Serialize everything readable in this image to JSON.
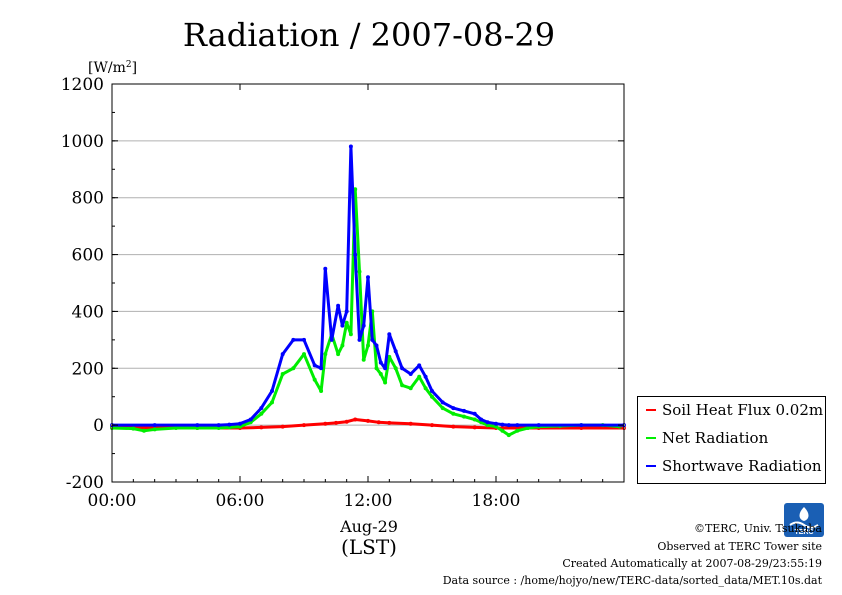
{
  "chart_data": {
    "type": "line",
    "title": "Radiation / 2007-08-29",
    "ylabel_unit": "[W/m",
    "ylabel_sup": "2",
    "ylabel_close": "]",
    "xlabel_date": "Aug-29",
    "xlabel_tz": "(LST)",
    "ylim": [
      -200,
      1200
    ],
    "yticks": [
      -200,
      0,
      200,
      400,
      600,
      800,
      1000,
      1200
    ],
    "xlim": [
      0,
      24
    ],
    "xticks": [
      {
        "hour": 0,
        "label": "00:00"
      },
      {
        "hour": 6,
        "label": "06:00"
      },
      {
        "hour": 12,
        "label": "12:00"
      },
      {
        "hour": 18,
        "label": "18:00"
      }
    ],
    "grid": true,
    "legend_position": "right",
    "series": [
      {
        "name": "Soil Heat Flux 0.02m",
        "color": "#ff0000",
        "x": [
          0,
          2,
          4,
          6,
          7,
          8,
          9,
          10,
          10.5,
          11,
          11.4,
          12,
          12.5,
          13,
          14,
          15,
          16,
          17,
          18,
          19,
          20,
          22,
          24
        ],
        "y": [
          -8,
          -10,
          -10,
          -10,
          -8,
          -5,
          0,
          5,
          8,
          12,
          20,
          15,
          10,
          8,
          5,
          0,
          -5,
          -8,
          -10,
          -10,
          -10,
          -10,
          -10
        ]
      },
      {
        "name": "Net Radiation",
        "color": "#00ee00",
        "x": [
          0,
          1,
          1.5,
          2,
          3,
          4,
          5,
          5.5,
          6,
          6.5,
          7,
          7.5,
          8,
          8.5,
          9,
          9.5,
          9.8,
          10,
          10.3,
          10.6,
          10.8,
          11,
          11.2,
          11.4,
          11.6,
          11.8,
          12,
          12.2,
          12.4,
          12.6,
          12.8,
          13,
          13.3,
          13.6,
          14,
          14.4,
          14.7,
          15,
          15.5,
          16,
          16.5,
          17,
          17.3,
          17.6,
          18,
          18.3,
          18.6,
          19,
          19.5,
          20,
          21,
          22,
          23,
          23.8
        ],
        "y": [
          -10,
          -12,
          -20,
          -15,
          -10,
          -10,
          -10,
          -8,
          -5,
          10,
          40,
          80,
          180,
          200,
          250,
          160,
          120,
          250,
          320,
          250,
          280,
          360,
          320,
          830,
          540,
          230,
          280,
          400,
          200,
          180,
          150,
          240,
          200,
          140,
          130,
          170,
          130,
          100,
          60,
          40,
          30,
          20,
          10,
          0,
          -5,
          -20,
          -35,
          -20,
          -10,
          -5,
          -3,
          0,
          0,
          -5
        ]
      },
      {
        "name": "Shortwave Radiation",
        "color": "#0000ff",
        "x": [
          0,
          2,
          4,
          5,
          5.5,
          6,
          6.5,
          7,
          7.5,
          8,
          8.5,
          9,
          9.5,
          9.8,
          10,
          10.3,
          10.6,
          10.8,
          11,
          11.2,
          11.4,
          11.6,
          11.8,
          12,
          12.2,
          12.4,
          12.6,
          12.8,
          13,
          13.3,
          13.6,
          14,
          14.4,
          14.7,
          15,
          15.5,
          16,
          16.5,
          17,
          17.3,
          17.6,
          18,
          18.3,
          18.6,
          19,
          20,
          22,
          24
        ],
        "y": [
          0,
          0,
          0,
          0,
          2,
          5,
          20,
          60,
          120,
          250,
          300,
          300,
          210,
          200,
          550,
          300,
          420,
          350,
          400,
          980,
          600,
          300,
          350,
          520,
          300,
          280,
          220,
          200,
          320,
          260,
          200,
          180,
          210,
          170,
          120,
          80,
          60,
          50,
          40,
          20,
          10,
          5,
          2,
          0,
          0,
          0,
          0,
          0
        ]
      }
    ]
  },
  "credits": {
    "copyright": "©TERC, Univ. Tsukuba",
    "observed": "Observed at TERC Tower site",
    "created": "Created Automatically at 2007-08-29/23:55:19",
    "source": "Data source : /home/hojyo/new/TERC-data/sorted_data/MET.10s.dat",
    "logo_text": "TERC"
  }
}
